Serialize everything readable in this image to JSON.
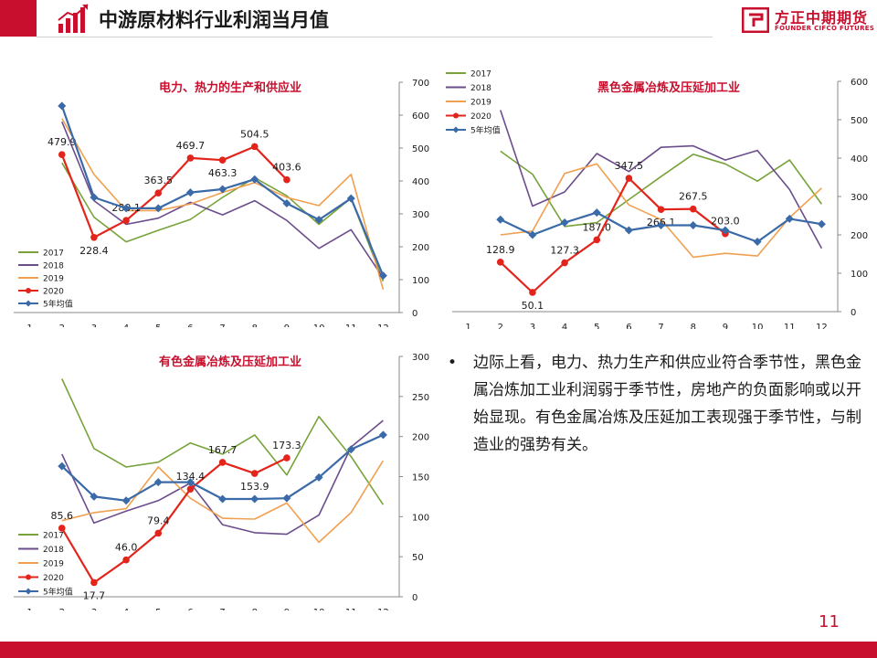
{
  "header": {
    "title": "中游原材料行业利润当月值"
  },
  "logo": {
    "cn": "方正中期期货",
    "en": "FOUNDER CIFCO FUTURES"
  },
  "commentary": {
    "text": "边际上看，电力、热力生产和供应业符合季节性，黑色金属冶炼加工业利润弱于季节性，房地产的负面影响或以开始显现。有色金属冶炼及压延加工表现强于季节性，与制造业的强势有关。"
  },
  "page": {
    "number": "11"
  },
  "colors": {
    "brand": "#c8102e",
    "s2017": "#77a33a",
    "s2018": "#6b4d8c",
    "s2019": "#f0a050",
    "s2020": "#e3241b",
    "avg": "#3b6aa8"
  },
  "chart_data": [
    {
      "type": "line",
      "title": "电力、热力的生产和供应业",
      "categories": [
        "1",
        "2",
        "3",
        "4",
        "5",
        "6",
        "7",
        "8",
        "9",
        "10",
        "11",
        "12"
      ],
      "ylim": [
        0,
        700
      ],
      "yticks": [
        "0",
        "100",
        "200",
        "300",
        "400",
        "500",
        "600",
        "700"
      ],
      "legend_position": "bottom-left",
      "series": [
        {
          "name": "2017",
          "color_key": "s2017",
          "marker": "none",
          "values": [
            null,
            455,
            290,
            215,
            250,
            283,
            350,
            410,
            355,
            268,
            348,
            95
          ]
        },
        {
          "name": "2018",
          "color_key": "s2018",
          "marker": "none",
          "values": [
            null,
            580,
            340,
            268,
            287,
            335,
            297,
            340,
            280,
            195,
            252,
            105
          ]
        },
        {
          "name": "2019",
          "color_key": "s2019",
          "marker": "none",
          "values": [
            null,
            590,
            420,
            310,
            310,
            330,
            365,
            395,
            350,
            325,
            420,
            70
          ]
        },
        {
          "name": "2020",
          "color_key": "s2020",
          "marker": "circle",
          "values": [
            null,
            479.9,
            228.4,
            280.1,
            363.5,
            469.7,
            463.3,
            504.5,
            403.6,
            null,
            null,
            null
          ],
          "labels": [
            "",
            "479.9",
            "228.4",
            "280.1",
            "363.5",
            "469.7",
            "463.3",
            "504.5",
            "403.6",
            "",
            "",
            ""
          ]
        },
        {
          "name": "5年均值",
          "color_key": "avg",
          "marker": "diamond",
          "values": [
            null,
            628,
            350,
            317,
            317,
            365,
            375,
            405,
            332,
            282,
            347,
            112
          ]
        }
      ]
    },
    {
      "type": "line",
      "title": "黑色金属冶炼及压延加工业",
      "categories": [
        "1",
        "2",
        "3",
        "4",
        "5",
        "6",
        "7",
        "8",
        "9",
        "10",
        "11",
        "12"
      ],
      "ylim": [
        0,
        600
      ],
      "yticks": [
        "0",
        "100",
        "200",
        "300",
        "400",
        "500",
        "600"
      ],
      "legend_position": "top-left",
      "series": [
        {
          "name": "2017",
          "color_key": "s2017",
          "marker": "none",
          "values": [
            null,
            418,
            358,
            222,
            232,
            292,
            352,
            410,
            385,
            340,
            395,
            280
          ]
        },
        {
          "name": "2018",
          "color_key": "s2018",
          "marker": "none",
          "values": [
            null,
            525,
            275,
            312,
            412,
            365,
            428,
            432,
            395,
            420,
            318,
            165
          ]
        },
        {
          "name": "2019",
          "color_key": "s2019",
          "marker": "none",
          "values": [
            null,
            200,
            210,
            360,
            385,
            278,
            240,
            142,
            152,
            145,
            245,
            322
          ]
        },
        {
          "name": "2020",
          "color_key": "s2020",
          "marker": "circle",
          "values": [
            null,
            128.9,
            50.1,
            127.3,
            187.0,
            347.5,
            266.1,
            267.5,
            203.0,
            null,
            null,
            null
          ],
          "labels": [
            "",
            "128.9",
            "50.1",
            "127.3",
            "187.0",
            "347.5",
            "266.1",
            "267.5",
            "203.0",
            "",
            "",
            ""
          ]
        },
        {
          "name": "5年均值",
          "color_key": "avg",
          "marker": "diamond",
          "values": [
            null,
            240,
            200,
            232,
            258,
            212,
            225,
            225,
            212,
            182,
            242,
            228
          ]
        }
      ]
    },
    {
      "type": "line",
      "title": "有色金属冶炼及压延加工业",
      "categories": [
        "1",
        "2",
        "3",
        "4",
        "5",
        "6",
        "7",
        "8",
        "9",
        "10",
        "11",
        "12"
      ],
      "ylim": [
        0,
        300
      ],
      "yticks": [
        "0",
        "50",
        "100",
        "150",
        "200",
        "250",
        "300"
      ],
      "legend_position": "bottom-left",
      "series": [
        {
          "name": "2017",
          "color_key": "s2017",
          "marker": "none",
          "values": [
            null,
            272,
            185,
            162,
            168,
            192,
            178,
            202,
            152,
            225,
            175,
            115
          ]
        },
        {
          "name": "2018",
          "color_key": "s2018",
          "marker": "none",
          "values": [
            null,
            178,
            92,
            107,
            120,
            142,
            90,
            80,
            78,
            102,
            187,
            220
          ]
        },
        {
          "name": "2019",
          "color_key": "s2019",
          "marker": "none",
          "values": [
            null,
            95,
            105,
            110,
            162,
            123,
            98,
            97,
            117,
            68,
            105,
            170
          ]
        },
        {
          "name": "2020",
          "color_key": "s2020",
          "marker": "circle",
          "values": [
            null,
            85.6,
            17.7,
            46.0,
            79.4,
            134.4,
            167.7,
            153.9,
            173.3,
            null,
            null,
            null
          ],
          "labels": [
            "",
            "85.6",
            "17.7",
            "46.0",
            "79.4",
            "134.4",
            "167.7",
            "153.9",
            "173.3",
            "",
            "",
            ""
          ]
        },
        {
          "name": "5年均值",
          "color_key": "avg",
          "marker": "diamond",
          "values": [
            null,
            163,
            125,
            120,
            143,
            143,
            122,
            122,
            123,
            149,
            184,
            202
          ]
        }
      ]
    }
  ]
}
